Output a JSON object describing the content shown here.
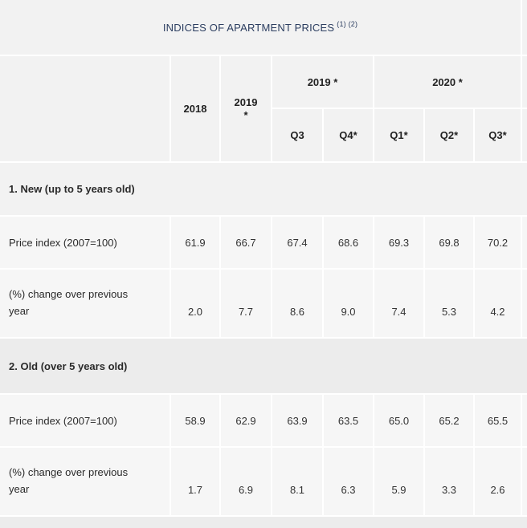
{
  "title": "INDICES OF APARTMENT PRICES",
  "title_sup": "(1) (2)",
  "headers": {
    "y2018": "2018",
    "y2019": "2019",
    "y2019_star": "*",
    "y2019_group": "2019 *",
    "y2020_group": "2020 *",
    "q3_2019": "Q3",
    "q4_2019": "Q4*",
    "q1_2020": "Q1*",
    "q2_2020": "Q2*",
    "q3_2020": "Q3*"
  },
  "sections": [
    {
      "name": "1. New (up to 5 years old)",
      "rows": [
        {
          "label": "Price index (2007=100)",
          "values": [
            "61.9",
            "66.7",
            "67.4",
            "68.6",
            "69.3",
            "69.8",
            "70.2"
          ]
        },
        {
          "label_line1": "(%) change over previous",
          "label_line2": "year",
          "values": [
            "2.0",
            "7.7",
            "8.6",
            "9.0",
            "7.4",
            "5.3",
            "4.2"
          ]
        }
      ]
    },
    {
      "name": "2. Old (over 5 years old)",
      "rows": [
        {
          "label": "Price index (2007=100)",
          "values": [
            "58.9",
            "62.9",
            "63.9",
            "63.5",
            "65.0",
            "65.2",
            "65.5"
          ]
        },
        {
          "label_line1": "(%) change over previous",
          "label_line2": "year",
          "values": [
            "1.7",
            "6.9",
            "8.1",
            "6.3",
            "5.9",
            "3.3",
            "2.6"
          ]
        }
      ]
    }
  ]
}
